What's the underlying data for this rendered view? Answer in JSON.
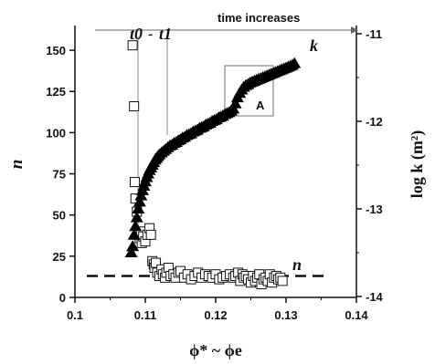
{
  "chart_data": {
    "type": "scatter",
    "title": "",
    "xlabel": "ϕ* ~ ϕe",
    "ylabel_left": "n",
    "ylabel_right": "log k (m²)",
    "xlim": [
      0.1,
      0.14
    ],
    "ylim_left": [
      0,
      165
    ],
    "ylim_right": [
      -14,
      -11
    ],
    "x_ticks": [
      "0.1",
      "0.11",
      "0.12",
      "0.13",
      "0.14"
    ],
    "y_left_ticks": [
      "0",
      "25",
      "50",
      "75",
      "100",
      "125",
      "150"
    ],
    "y_right_ticks": [
      "-11",
      "-12",
      "-13",
      "-14"
    ],
    "grid": false,
    "annotations": {
      "time_label": "time increases",
      "t0": "t0",
      "t0_sub": "0",
      "dash": "-",
      "t1": "t1",
      "t1_sub": "1",
      "box_label": "A",
      "k_label": "k",
      "n_label": "n"
    },
    "reference_line": {
      "series": "n",
      "y": 13,
      "style": "dashed"
    },
    "series": [
      {
        "name": "n",
        "marker": "open-square",
        "axis": "left",
        "x": [
          0.1082,
          0.1084,
          0.1085,
          0.1086,
          0.1088,
          0.109,
          0.1092,
          0.1094,
          0.1095,
          0.1097,
          0.11,
          0.1103,
          0.1106,
          0.1108,
          0.111,
          0.1112,
          0.1113,
          0.1115,
          0.1117,
          0.112,
          0.1123,
          0.1125,
          0.1128,
          0.113,
          0.1133,
          0.1136,
          0.114,
          0.1143,
          0.1147,
          0.115,
          0.1155,
          0.116,
          0.1165,
          0.117,
          0.1175,
          0.118,
          0.1185,
          0.119,
          0.1195,
          0.12,
          0.1205,
          0.121,
          0.1215,
          0.122,
          0.1225,
          0.1228,
          0.1232,
          0.1235,
          0.1238,
          0.124,
          0.1243,
          0.1246,
          0.125,
          0.1253,
          0.1256,
          0.1259,
          0.1262,
          0.1265,
          0.1268,
          0.1271,
          0.1274,
          0.1277,
          0.128,
          0.1283,
          0.1286,
          0.1289,
          0.1292,
          0.1295
        ],
        "y": [
          153,
          116,
          70,
          60,
          52,
          38,
          36,
          40,
          33,
          37,
          34,
          38,
          42,
          38,
          22,
          20,
          18,
          21,
          15,
          13,
          17,
          14,
          12,
          15,
          18,
          13,
          14,
          12,
          15,
          16,
          12,
          14,
          11,
          13,
          15,
          12,
          14,
          13,
          12,
          14,
          11,
          12,
          13,
          14,
          12,
          13,
          15,
          10,
          14,
          12,
          13,
          11,
          9,
          13,
          10,
          12,
          14,
          8,
          11,
          12,
          10,
          14,
          9,
          12,
          13,
          11,
          12,
          10
        ]
      },
      {
        "name": "k",
        "marker": "filled-triangle",
        "axis": "right",
        "x": [
          0.108,
          0.1082,
          0.1084,
          0.1086,
          0.1088,
          0.109,
          0.1092,
          0.1094,
          0.1096,
          0.1098,
          0.11,
          0.1102,
          0.1104,
          0.1106,
          0.1108,
          0.111,
          0.1112,
          0.1114,
          0.1116,
          0.1118,
          0.112,
          0.1123,
          0.1126,
          0.1129,
          0.1132,
          0.1135,
          0.1138,
          0.1141,
          0.1144,
          0.1147,
          0.115,
          0.1153,
          0.1156,
          0.1159,
          0.1162,
          0.1165,
          0.1168,
          0.1171,
          0.1174,
          0.1177,
          0.118,
          0.1183,
          0.1186,
          0.1189,
          0.1192,
          0.1195,
          0.1198,
          0.1201,
          0.1204,
          0.1207,
          0.121,
          0.1213,
          0.1216,
          0.1219,
          0.1222,
          0.1225,
          0.1228,
          0.1231,
          0.1234,
          0.1237,
          0.124,
          0.1243,
          0.1246,
          0.1249,
          0.1252,
          0.1255,
          0.1258,
          0.1261,
          0.1264,
          0.1267,
          0.127,
          0.1273,
          0.1276,
          0.1279,
          0.1282,
          0.1285,
          0.1288,
          0.1291,
          0.1294,
          0.1297,
          0.13,
          0.1303,
          0.1306,
          0.1309,
          0.1312
        ],
        "y": [
          -13.5,
          -13.43,
          -13.3,
          -13.2,
          -13.1,
          -13.0,
          -12.92,
          -12.85,
          -12.79,
          -12.74,
          -12.69,
          -12.64,
          -12.6,
          -12.56,
          -12.53,
          -12.5,
          -12.47,
          -12.44,
          -12.42,
          -12.4,
          -12.38,
          -12.36,
          -12.34,
          -12.32,
          -12.3,
          -12.28,
          -12.27,
          -12.25,
          -12.24,
          -12.22,
          -12.21,
          -12.19,
          -12.18,
          -12.16,
          -12.15,
          -12.14,
          -12.12,
          -12.11,
          -12.1,
          -12.08,
          -12.07,
          -12.06,
          -12.04,
          -12.03,
          -12.02,
          -12.0,
          -11.99,
          -11.98,
          -11.96,
          -11.95,
          -11.94,
          -11.92,
          -11.91,
          -11.9,
          -11.88,
          -11.86,
          -11.8,
          -11.73,
          -11.68,
          -11.64,
          -11.61,
          -11.59,
          -11.58,
          -11.56,
          -11.55,
          -11.54,
          -11.53,
          -11.52,
          -11.51,
          -11.5,
          -11.49,
          -11.48,
          -11.47,
          -11.46,
          -11.45,
          -11.44,
          -11.43,
          -11.42,
          -11.41,
          -11.4,
          -11.39,
          -11.38,
          -11.37,
          -11.36,
          -11.34
        ]
      }
    ]
  }
}
